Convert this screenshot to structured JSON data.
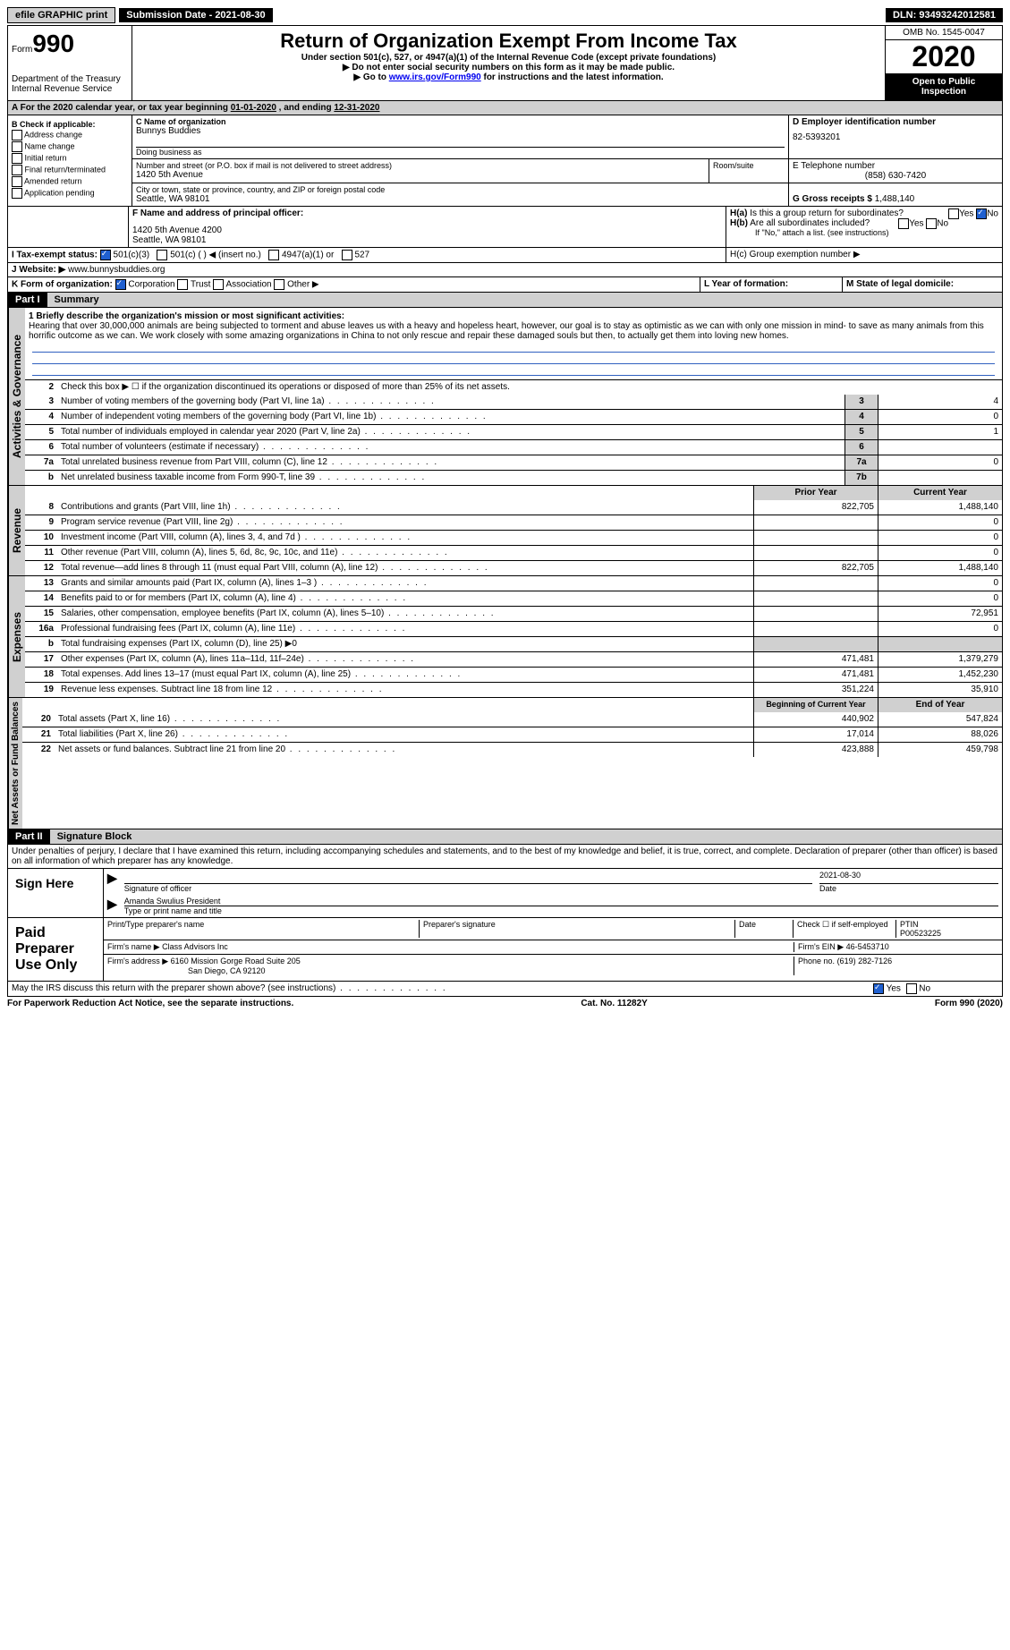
{
  "topbar": {
    "efile": "efile GRAPHIC print",
    "sub_label": "Submission Date - 2021-08-30",
    "dln": "DLN: 93493242012581"
  },
  "header": {
    "form_word": "Form",
    "form_num": "990",
    "dept": "Department of the Treasury",
    "irs": "Internal Revenue Service",
    "title": "Return of Organization Exempt From Income Tax",
    "sub1": "Under section 501(c), 527, or 4947(a)(1) of the Internal Revenue Code (except private foundations)",
    "sub2": "▶ Do not enter social security numbers on this form as it may be made public.",
    "sub3_pre": "▶ Go to ",
    "sub3_link": "www.irs.gov/Form990",
    "sub3_post": " for instructions and the latest information.",
    "omb": "OMB No. 1545-0047",
    "year": "2020",
    "open": "Open to Public Inspection"
  },
  "period": {
    "label_a": "A For the 2020 calendar year, or tax year beginning ",
    "begin": "01-01-2020",
    "mid": " , and ending ",
    "end": "12-31-2020"
  },
  "boxB": {
    "title": "B Check if applicable:",
    "items": [
      "Address change",
      "Name change",
      "Initial return",
      "Final return/terminated",
      "Amended return",
      "Application pending"
    ]
  },
  "boxC": {
    "name_label": "C Name of organization",
    "name": "Bunnys Buddies",
    "dba": "Doing business as",
    "addr_label": "Number and street (or P.O. box if mail is not delivered to street address)",
    "room": "Room/suite",
    "addr": "1420 5th Avenue",
    "city_label": "City or town, state or province, country, and ZIP or foreign postal code",
    "city": "Seattle, WA  98101"
  },
  "boxD": {
    "label": "D Employer identification number",
    "val": "82-5393201"
  },
  "boxE": {
    "label": "E Telephone number",
    "val": "(858) 630-7420"
  },
  "boxG": {
    "label": "G Gross receipts $",
    "val": "1,488,140"
  },
  "boxF": {
    "label": "F Name and address of principal officer:",
    "line1": "1420 5th Avenue 4200",
    "line2": "Seattle, WA  98101"
  },
  "boxH": {
    "a": "H(a)  Is this a group return for subordinates?",
    "b": "H(b)  Are all subordinates included?",
    "b_note": "If \"No,\" attach a list. (see instructions)",
    "c": "H(c)  Group exemption number ▶",
    "yes": "Yes",
    "no": "No"
  },
  "boxI": {
    "label": "I  Tax-exempt status:",
    "c3": "501(c)(3)",
    "c": "501(c) (  ) ◀ (insert no.)",
    "a1": "4947(a)(1) or",
    "527": "527"
  },
  "boxJ": {
    "label": "J  Website: ▶",
    "val": "www.bunnysbuddies.org"
  },
  "boxK": {
    "label": "K Form of organization:",
    "corp": "Corporation",
    "trust": "Trust",
    "assoc": "Association",
    "other": "Other ▶"
  },
  "boxL": {
    "label": "L Year of formation:"
  },
  "boxM": {
    "label": "M State of legal domicile:"
  },
  "part1": {
    "header": "Part I",
    "title": "Summary",
    "vlabel_gov": "Activities & Governance",
    "vlabel_rev": "Revenue",
    "vlabel_exp": "Expenses",
    "vlabel_net": "Net Assets or Fund Balances",
    "line1_label": "1  Briefly describe the organization's mission or most significant activities:",
    "mission": "Hearing that over 30,000,000 animals are being subjected to torment and abuse leaves us with a heavy and hopeless heart, however, our goal is to stay as optimistic as we can with only one mission in mind- to save as many animals from this horrific outcome as we can. We work closely with some amazing organizations in China to not only rescue and repair these damaged souls but then, to actually get them into loving new homes.",
    "line2": "Check this box ▶ ☐ if the organization discontinued its operations or disposed of more than 25% of its net assets.",
    "lines_gov": [
      {
        "n": "3",
        "label": "Number of voting members of the governing body (Part VI, line 1a)",
        "box": "3",
        "val": "4"
      },
      {
        "n": "4",
        "label": "Number of independent voting members of the governing body (Part VI, line 1b)",
        "box": "4",
        "val": "0"
      },
      {
        "n": "5",
        "label": "Total number of individuals employed in calendar year 2020 (Part V, line 2a)",
        "box": "5",
        "val": "1"
      },
      {
        "n": "6",
        "label": "Total number of volunteers (estimate if necessary)",
        "box": "6",
        "val": ""
      },
      {
        "n": "7a",
        "label": "Total unrelated business revenue from Part VIII, column (C), line 12",
        "box": "7a",
        "val": "0"
      },
      {
        "n": "b",
        "label": "Net unrelated business taxable income from Form 990-T, line 39",
        "box": "7b",
        "val": ""
      }
    ],
    "col_prior": "Prior Year",
    "col_curr": "Current Year",
    "lines_rev": [
      {
        "n": "8",
        "label": "Contributions and grants (Part VIII, line 1h)",
        "prior": "822,705",
        "curr": "1,488,140"
      },
      {
        "n": "9",
        "label": "Program service revenue (Part VIII, line 2g)",
        "prior": "",
        "curr": "0"
      },
      {
        "n": "10",
        "label": "Investment income (Part VIII, column (A), lines 3, 4, and 7d )",
        "prior": "",
        "curr": "0"
      },
      {
        "n": "11",
        "label": "Other revenue (Part VIII, column (A), lines 5, 6d, 8c, 9c, 10c, and 11e)",
        "prior": "",
        "curr": "0"
      },
      {
        "n": "12",
        "label": "Total revenue—add lines 8 through 11 (must equal Part VIII, column (A), line 12)",
        "prior": "822,705",
        "curr": "1,488,140"
      }
    ],
    "lines_exp": [
      {
        "n": "13",
        "label": "Grants and similar amounts paid (Part IX, column (A), lines 1–3 )",
        "prior": "",
        "curr": "0"
      },
      {
        "n": "14",
        "label": "Benefits paid to or for members (Part IX, column (A), line 4)",
        "prior": "",
        "curr": "0"
      },
      {
        "n": "15",
        "label": "Salaries, other compensation, employee benefits (Part IX, column (A), lines 5–10)",
        "prior": "",
        "curr": "72,951"
      },
      {
        "n": "16a",
        "label": "Professional fundraising fees (Part IX, column (A), line 11e)",
        "prior": "",
        "curr": "0"
      },
      {
        "n": "b",
        "label": "Total fundraising expenses (Part IX, column (D), line 25) ▶0",
        "prior": null,
        "curr": null
      },
      {
        "n": "17",
        "label": "Other expenses (Part IX, column (A), lines 11a–11d, 11f–24e)",
        "prior": "471,481",
        "curr": "1,379,279"
      },
      {
        "n": "18",
        "label": "Total expenses. Add lines 13–17 (must equal Part IX, column (A), line 25)",
        "prior": "471,481",
        "curr": "1,452,230"
      },
      {
        "n": "19",
        "label": "Revenue less expenses. Subtract line 18 from line 12",
        "prior": "351,224",
        "curr": "35,910"
      }
    ],
    "col_begin": "Beginning of Current Year",
    "col_end": "End of Year",
    "lines_net": [
      {
        "n": "20",
        "label": "Total assets (Part X, line 16)",
        "prior": "440,902",
        "curr": "547,824"
      },
      {
        "n": "21",
        "label": "Total liabilities (Part X, line 26)",
        "prior": "17,014",
        "curr": "88,026"
      },
      {
        "n": "22",
        "label": "Net assets or fund balances. Subtract line 21 from line 20",
        "prior": "423,888",
        "curr": "459,798"
      }
    ]
  },
  "part2": {
    "header": "Part II",
    "title": "Signature Block",
    "decl": "Under penalties of perjury, I declare that I have examined this return, including accompanying schedules and statements, and to the best of my knowledge and belief, it is true, correct, and complete. Declaration of preparer (other than officer) is based on all information of which preparer has any knowledge.",
    "sign_here": "Sign Here",
    "sig_officer": "Signature of officer",
    "sig_date": "2021-08-30",
    "date_label": "Date",
    "officer_name": "Amanda Swulius  President",
    "officer_sub": "Type or print name and title",
    "paid": "Paid Preparer Use Only",
    "prep_name_label": "Print/Type preparer's name",
    "prep_sig_label": "Preparer's signature",
    "check_self": "Check ☐ if self-employed",
    "ptin_label": "PTIN",
    "ptin": "P00523225",
    "firm_name_label": "Firm's name   ▶",
    "firm_name": "Class Advisors Inc",
    "firm_ein_label": "Firm's EIN ▶",
    "firm_ein": "46-5453710",
    "firm_addr_label": "Firm's address ▶",
    "firm_addr1": "6160 Mission Gorge Road Suite 205",
    "firm_addr2": "San Diego, CA  92120",
    "phone_label": "Phone no.",
    "phone": "(619) 282-7126",
    "discuss": "May the IRS discuss this return with the preparer shown above? (see instructions)"
  },
  "footer": {
    "left": "For Paperwork Reduction Act Notice, see the separate instructions.",
    "mid": "Cat. No. 11282Y",
    "right_pre": "Form ",
    "right_num": "990",
    "right_post": " (2020)"
  }
}
